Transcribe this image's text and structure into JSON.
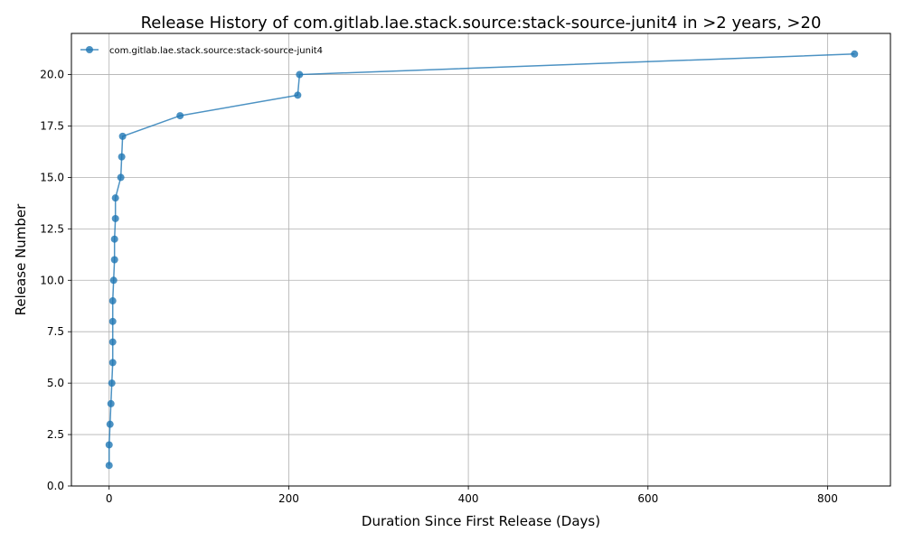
{
  "chart_data": {
    "type": "line",
    "title": "Release History of com.gitlab.lae.stack.source:stack-source-junit4 in >2 years, >20",
    "xlabel": "Duration Since First Release (Days)",
    "ylabel": "Release Number",
    "xlim": [
      -42,
      870
    ],
    "ylim": [
      0,
      22
    ],
    "x_ticks": [
      0,
      200,
      400,
      600,
      800
    ],
    "y_ticks": [
      0.0,
      2.5,
      5.0,
      7.5,
      10.0,
      12.5,
      15.0,
      17.5,
      20.0
    ],
    "x_tick_labels": [
      "0",
      "200",
      "400",
      "600",
      "800"
    ],
    "y_tick_labels": [
      "0.0",
      "2.5",
      "5.0",
      "7.5",
      "10.0",
      "12.5",
      "15.0",
      "17.5",
      "20.0"
    ],
    "grid": true,
    "legend_position": "top-left",
    "series": [
      {
        "name": "com.gitlab.lae.stack.source:stack-source-junit4",
        "color": "#1f77b4",
        "x": [
          0,
          0,
          1,
          2,
          3,
          4,
          4,
          4,
          4,
          5,
          6,
          6,
          7,
          7,
          13,
          14,
          15,
          79,
          210,
          212,
          830
        ],
        "y": [
          1,
          2,
          3,
          4,
          5,
          6,
          7,
          8,
          9,
          10,
          11,
          12,
          13,
          14,
          15,
          16,
          17,
          18,
          19,
          20,
          21
        ]
      }
    ]
  }
}
